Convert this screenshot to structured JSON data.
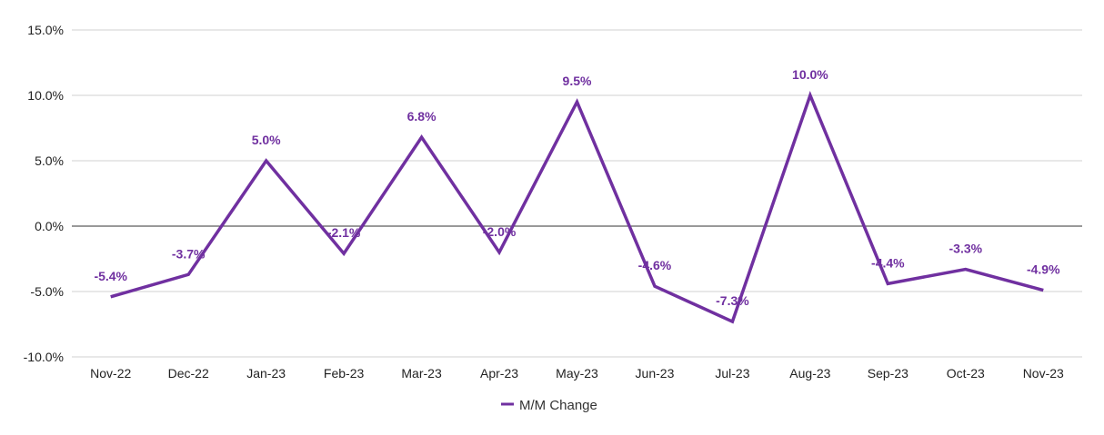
{
  "chart_data": {
    "type": "line",
    "title": "",
    "xlabel": "",
    "ylabel": "",
    "categories": [
      "Nov-22",
      "Dec-22",
      "Jan-23",
      "Feb-23",
      "Mar-23",
      "Apr-23",
      "May-23",
      "Jun-23",
      "Jul-23",
      "Aug-23",
      "Sep-23",
      "Oct-23",
      "Nov-23"
    ],
    "series": [
      {
        "name": "M/M Change",
        "values": [
          -5.4,
          -3.7,
          5.0,
          -2.1,
          6.8,
          -2.0,
          9.5,
          -4.6,
          -7.3,
          10.0,
          -4.4,
          -3.3,
          -4.9
        ],
        "labels": [
          "-5.4%",
          "-3.7%",
          "5.0%",
          "-2.1%",
          "6.8%",
          "-2.0%",
          "9.5%",
          "-4.6%",
          "-7.3%",
          "10.0%",
          "-4.4%",
          "-3.3%",
          "-4.9%"
        ],
        "color": "#7030a0"
      }
    ],
    "ylim": [
      -10,
      15
    ],
    "yticks": [
      15,
      10,
      5,
      0,
      -5,
      -10
    ],
    "ytick_labels": [
      "15.0%",
      "10.0%",
      "5.0%",
      "0.0%",
      "-5.0%",
      "-10.0%"
    ],
    "grid": true,
    "legend": "bottom-center",
    "colors": {
      "line": "#7030a0",
      "grid": "#d0d0d0",
      "zero_line": "#333333"
    }
  }
}
